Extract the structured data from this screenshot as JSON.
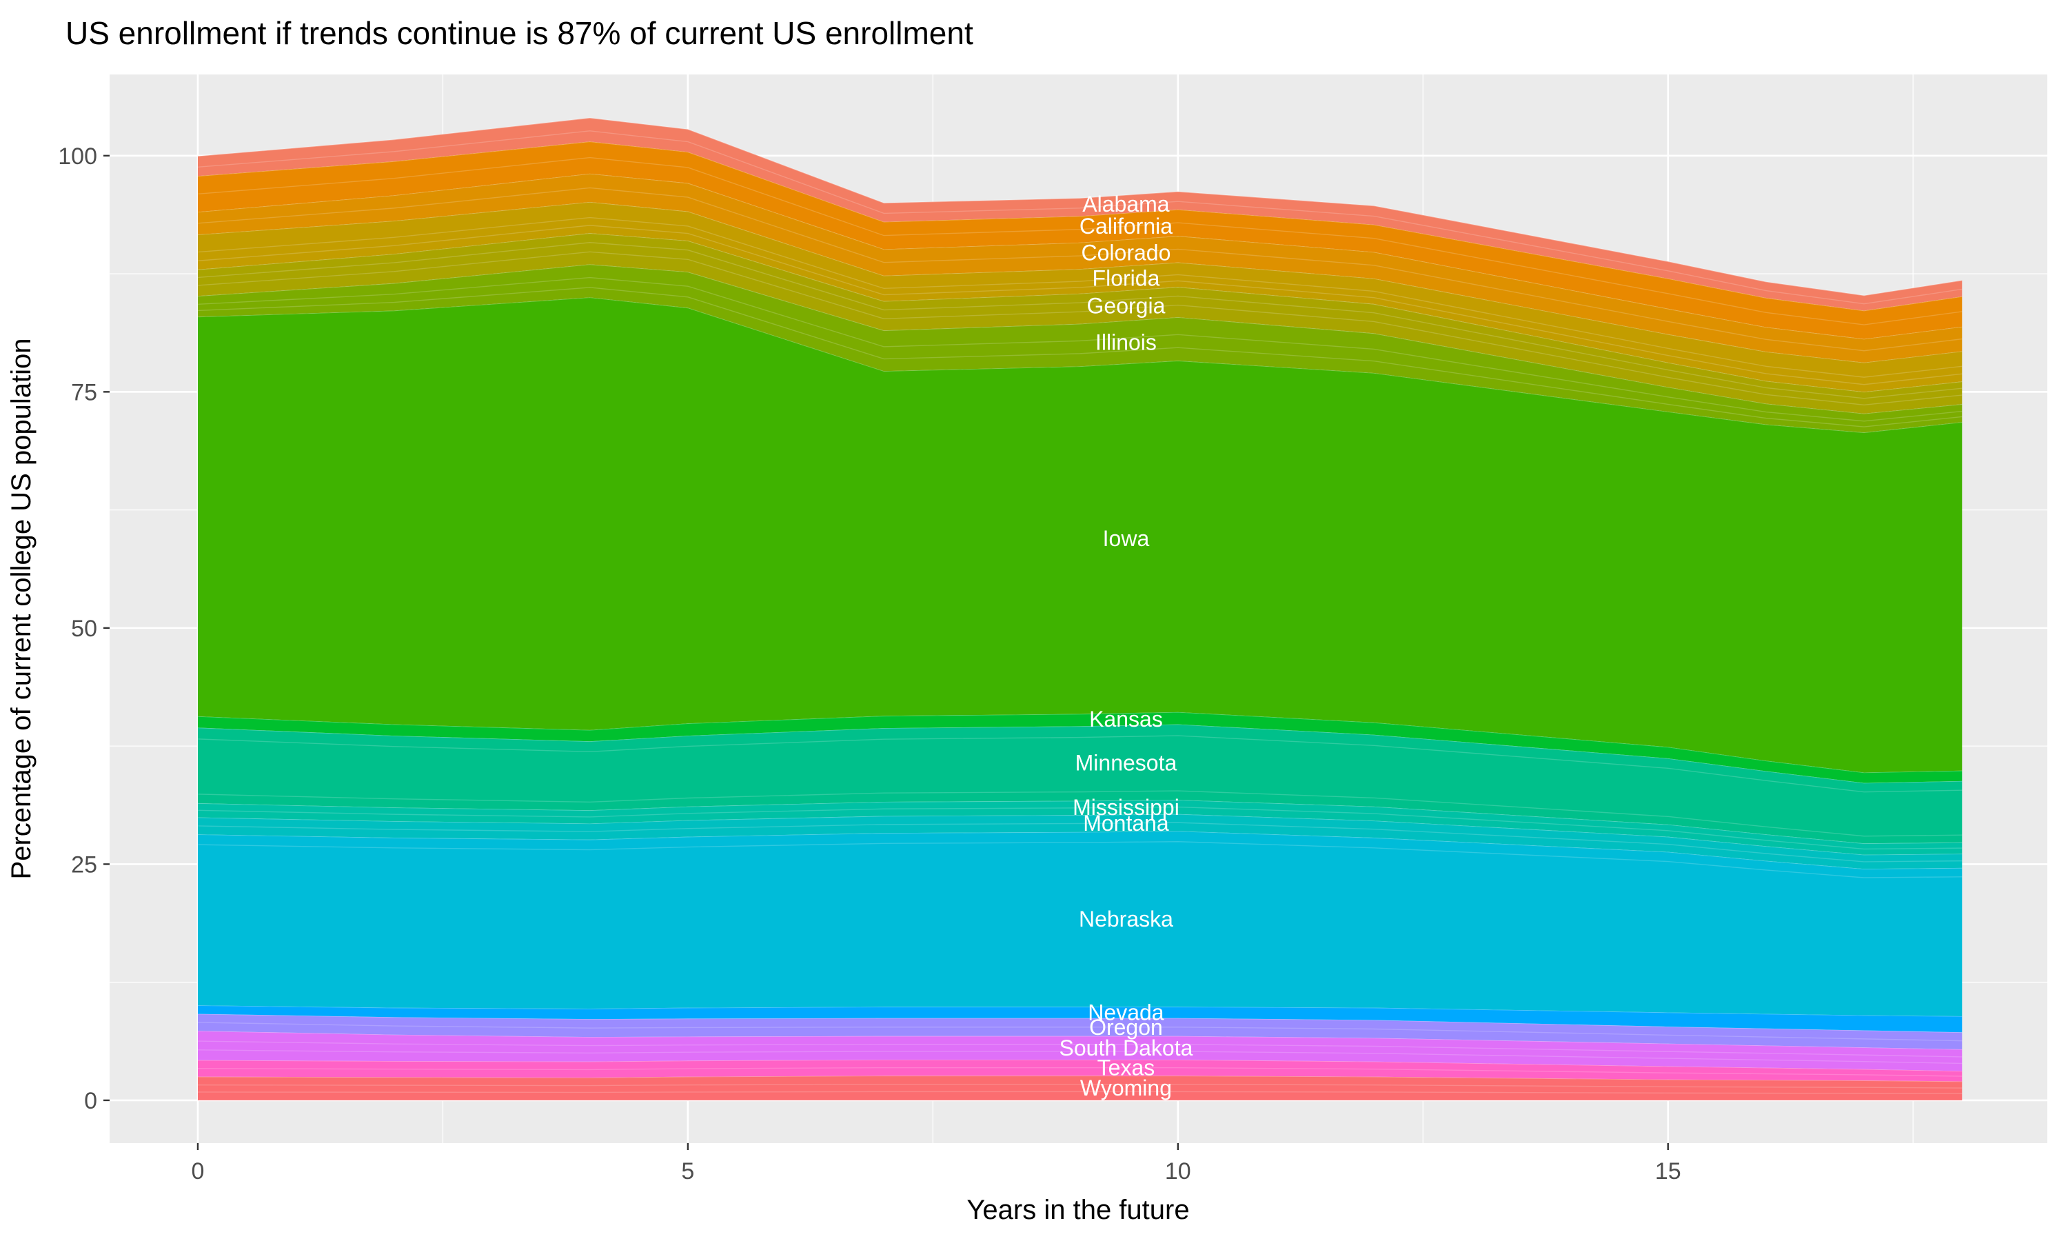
{
  "title": "US enrollment if trends continue is 87% of current US enrollment",
  "x_axis": {
    "title": "Years in the future",
    "tick_labels": [
      "0",
      "5",
      "10",
      "15"
    ],
    "tick_values": [
      0,
      5,
      10,
      15
    ],
    "minor_ticks": [
      2.5,
      7.5,
      12.5,
      17.5
    ],
    "range": [
      -0.9,
      18.87
    ]
  },
  "y_axis": {
    "title": "Percentage of current college US population",
    "tick_labels": [
      "0",
      "25",
      "50",
      "75",
      "100"
    ],
    "tick_values": [
      0,
      25,
      50,
      75,
      100
    ],
    "minor_ticks": [
      12.5,
      37.5,
      62.5,
      87.5
    ],
    "range": [
      -4.53,
      108.6
    ]
  },
  "style_colors": {
    "panel_bg": "#EBEBEB",
    "grid": "#FFFFFF",
    "tick_mark": "#333333",
    "tick_label": "#4D4D4D",
    "title_color": "#000000",
    "band_label": "#FFFFFF"
  },
  "chart_data": {
    "type": "area",
    "stacked": true,
    "series_order": "bottom-to-top",
    "grid": "on",
    "legend": "none (bands labeled in-plot)",
    "x": [
      0,
      2,
      4,
      5,
      7,
      9,
      10,
      12,
      15,
      16,
      17,
      18
    ],
    "label_anchor_x": 9.47,
    "total_top_edge": [
      100,
      101.7,
      104.0,
      102.8,
      95.0,
      95.5,
      96.2,
      94.7,
      88.8,
      86.7,
      85.2,
      86.8
    ],
    "series": [
      {
        "name": "Wyoming",
        "color": "#FB6D70",
        "values": [
          2.5,
          2.45,
          2.4,
          2.5,
          2.6,
          2.6,
          2.6,
          2.5,
          2.2,
          2.15,
          2.1,
          2.0
        ]
      },
      {
        "name": "Texas",
        "color": "#FF62C6",
        "values": [
          1.75,
          1.7,
          1.7,
          1.7,
          1.7,
          1.7,
          1.7,
          1.6,
          1.4,
          1.3,
          1.2,
          1.1
        ]
      },
      {
        "name": "South Dakota",
        "color": "#DF70F8",
        "values": [
          3.1,
          2.8,
          2.6,
          2.55,
          2.5,
          2.5,
          2.5,
          2.5,
          2.4,
          2.35,
          2.3,
          2.3
        ]
      },
      {
        "name": "Oregon",
        "color": "#9B8CFF",
        "values": [
          1.8,
          1.85,
          1.9,
          1.9,
          1.9,
          1.9,
          1.9,
          1.9,
          1.8,
          1.8,
          1.8,
          1.8
        ]
      },
      {
        "name": "Nevada",
        "color": "#00A9FF",
        "values": [
          0.9,
          1.0,
          1.1,
          1.15,
          1.2,
          1.2,
          1.2,
          1.3,
          1.5,
          1.55,
          1.6,
          1.7
        ]
      },
      {
        "name": "Nebraska",
        "color": "#00BCD9",
        "values": [
          18.1,
          18.0,
          17.9,
          18.1,
          18.4,
          18.5,
          18.6,
          18.0,
          17.0,
          16.2,
          15.5,
          15.7
        ]
      },
      {
        "name": "Montana",
        "color": "#00BFC0",
        "values": [
          1.8,
          1.75,
          1.7,
          1.75,
          1.8,
          1.8,
          1.8,
          1.8,
          1.6,
          1.55,
          1.5,
          1.5
        ]
      },
      {
        "name": "Mississippi",
        "color": "#00C1A5",
        "values": [
          1.5,
          1.45,
          1.4,
          1.45,
          1.5,
          1.5,
          1.5,
          1.5,
          1.3,
          1.25,
          1.2,
          1.2
        ]
      },
      {
        "name": "Minnesota",
        "color": "#00C08B",
        "values": [
          8.0,
          7.6,
          7.3,
          7.5,
          7.8,
          7.9,
          8.0,
          7.6,
          7.0,
          6.7,
          6.4,
          6.5
        ]
      },
      {
        "name": "Kansas",
        "color": "#00C02E",
        "values": [
          1.2,
          1.2,
          1.2,
          1.3,
          1.3,
          1.3,
          1.3,
          1.3,
          1.2,
          1.1,
          1.1,
          1.1
        ]
      },
      {
        "name": "Iowa",
        "color": "#3FB300",
        "values": [
          42.3,
          43.8,
          45.8,
          44.0,
          36.5,
          36.8,
          37.2,
          37.0,
          35.5,
          35.6,
          36.0,
          36.9
        ]
      },
      {
        "name": "Illinois",
        "color": "#7BAC00",
        "values": [
          2.2,
          2.9,
          3.5,
          3.8,
          4.3,
          4.5,
          4.6,
          4.2,
          2.6,
          2.2,
          2.0,
          1.9
        ]
      },
      {
        "name": "Georgia",
        "color": "#A9A400",
        "values": [
          2.8,
          3.1,
          3.3,
          3.3,
          3.1,
          3.2,
          3.2,
          3.1,
          2.6,
          2.4,
          2.3,
          2.4
        ]
      },
      {
        "name": "Florida",
        "color": "#C39D00",
        "values": [
          3.7,
          3.5,
          3.3,
          3.1,
          2.7,
          2.6,
          2.6,
          2.7,
          3.0,
          3.1,
          3.1,
          3.2
        ]
      },
      {
        "name": "Colorado",
        "color": "#DE9100",
        "values": [
          2.4,
          2.7,
          3.0,
          3.0,
          2.8,
          2.8,
          2.8,
          2.8,
          2.7,
          2.6,
          2.5,
          2.6
        ]
      },
      {
        "name": "California",
        "color": "#E98900",
        "values": [
          3.8,
          3.6,
          3.4,
          3.3,
          2.9,
          2.8,
          2.8,
          2.9,
          3.2,
          3.1,
          3.0,
          3.2
        ]
      },
      {
        "name": "Alabama",
        "color": "#F37D63",
        "values": [
          2.1,
          2.3,
          2.5,
          2.4,
          2.0,
          1.9,
          1.9,
          2.0,
          1.8,
          1.7,
          1.6,
          1.7
        ]
      }
    ]
  }
}
